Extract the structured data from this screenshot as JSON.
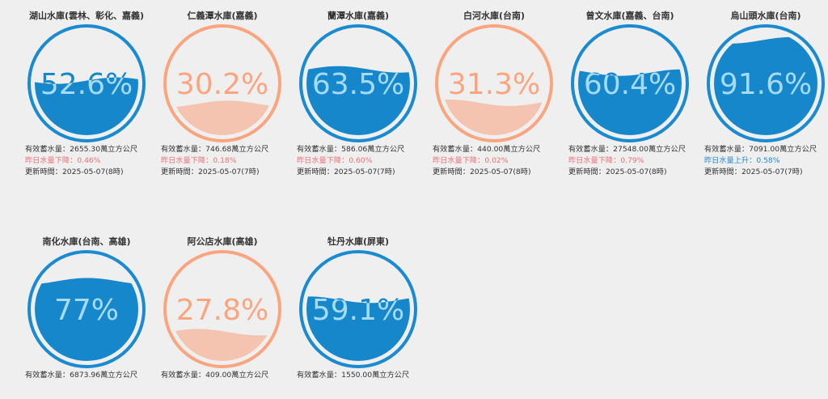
{
  "colors": {
    "blue_stroke": "#1a8ad1",
    "blue_fill": "#1787cc",
    "blue_text_fill": "#a6dbf6",
    "orange_stroke": "#fba57e",
    "orange_fill": "#f5c4b0",
    "orange_text": "#fba57e",
    "down_text": "#ee6e74",
    "up_text": "#2388d0",
    "background": "#efefef"
  },
  "labels": {
    "storage_prefix": "有效蓄水量：",
    "storage_unit": "萬立方公尺",
    "update_prefix": "更新時間："
  },
  "reservoirs": [
    {
      "name": "湖山水庫(雲林、彰化、嘉義)",
      "percent_label": "52.6%",
      "level": 0.526,
      "theme": "blue",
      "storage": "2655.30",
      "change_label": "昨日水量下降：",
      "change_value": "0.46%",
      "change_dir": "down",
      "updated": "2025-05-07(8時)"
    },
    {
      "name": "仁義潭水庫(嘉義)",
      "percent_label": "30.2%",
      "level": 0.302,
      "theme": "orange",
      "storage": "746.68",
      "change_label": "昨日水量下降：",
      "change_value": "0.18%",
      "change_dir": "down",
      "updated": "2025-05-07(7時)"
    },
    {
      "name": "蘭潭水庫(嘉義)",
      "percent_label": "63.5%",
      "level": 0.635,
      "theme": "blue",
      "storage": "586.06",
      "change_label": "昨日水量下降：",
      "change_value": "0.60%",
      "change_dir": "down",
      "updated": "2025-05-07(7時)"
    },
    {
      "name": "白河水庫(台南)",
      "percent_label": "31.3%",
      "level": 0.313,
      "theme": "orange",
      "storage": "440.00",
      "change_label": "昨日水量下降：",
      "change_value": "0.02%",
      "change_dir": "down",
      "updated": "2025-05-07(8時)"
    },
    {
      "name": "曾文水庫(嘉義、台南)",
      "percent_label": "60.4%",
      "level": 0.604,
      "theme": "blue",
      "storage": "27548.00",
      "change_label": "昨日水量下降：",
      "change_value": "0.79%",
      "change_dir": "down",
      "updated": "2025-05-07(8時)"
    },
    {
      "name": "烏山頭水庫(台南)",
      "percent_label": "91.6%",
      "level": 0.916,
      "theme": "blue",
      "storage": "7091.00",
      "change_label": "昨日水量上升：",
      "change_value": "0.58%",
      "change_dir": "up",
      "updated": "2025-05-07(7時)"
    },
    {
      "name": "南化水庫(台南、高雄)",
      "percent_label": "77%",
      "level": 0.77,
      "theme": "blue",
      "storage": "6873.96"
    },
    {
      "name": "阿公店水庫(高雄)",
      "percent_label": "27.8%",
      "level": 0.278,
      "theme": "orange",
      "storage": "409.00"
    },
    {
      "name": "牡丹水庫(屏東)",
      "percent_label": "59.1%",
      "level": 0.591,
      "theme": "blue",
      "storage": "1550.00"
    }
  ]
}
